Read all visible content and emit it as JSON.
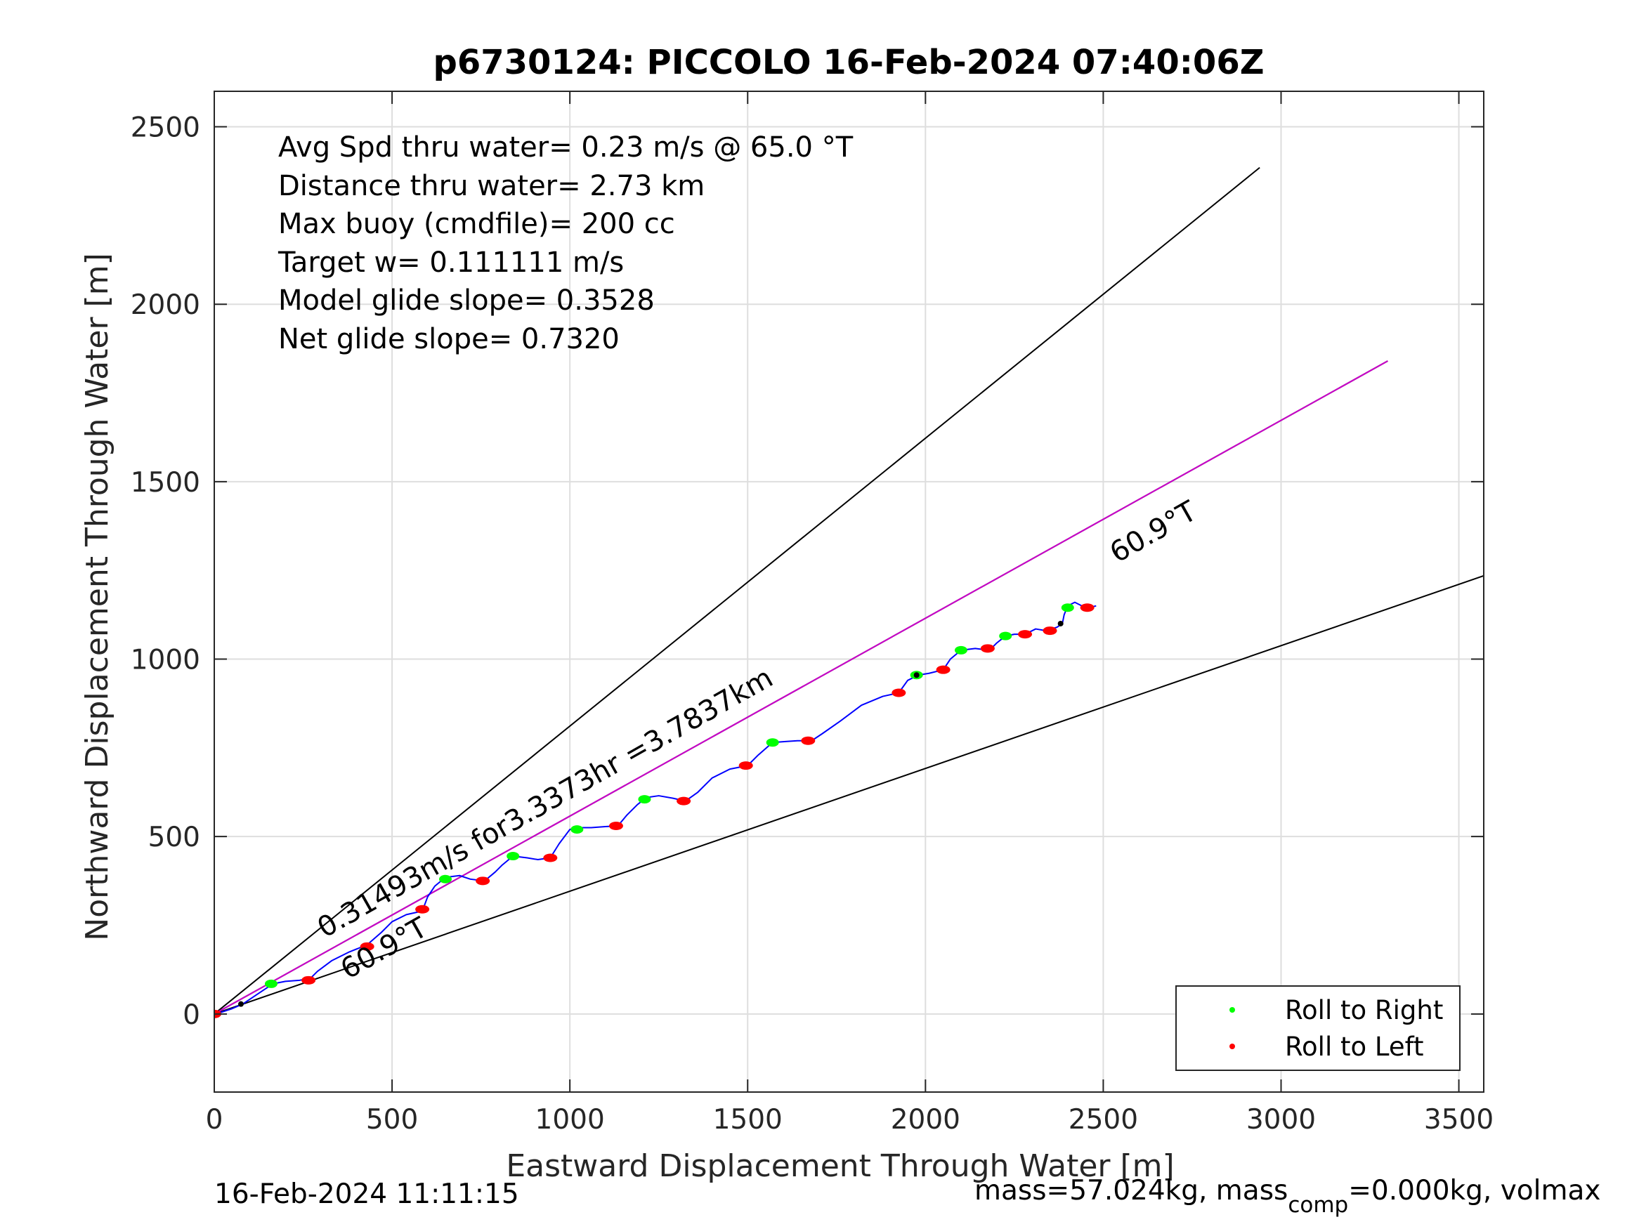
{
  "chart_data": {
    "type": "line",
    "title": "p6730124: PICCOLO 16-Feb-2024 07:40:06Z",
    "xlabel": "Eastward Displacement Through Water [m]",
    "ylabel": "Northward Displacement Through Water [m]",
    "xlim": [
      0,
      3570
    ],
    "ylim": [
      -220,
      2600
    ],
    "xticks": [
      "0",
      "500",
      "1000",
      "1500",
      "2000",
      "2500",
      "3000",
      "3500"
    ],
    "yticks": [
      "0",
      "500",
      "1000",
      "1500",
      "2000",
      "2500"
    ],
    "xtick_values": [
      0,
      500,
      1000,
      1500,
      2000,
      2500,
      3000,
      3500
    ],
    "ytick_values": [
      0,
      500,
      1000,
      1500,
      2000,
      2500
    ],
    "grid": true,
    "info_lines": [
      "Avg Spd thru water=  0.23 m/s @  65.0 °T",
      "Distance thru water=  2.73 km",
      "Max buoy (cmdfile)= 200 cc",
      "Target w= 0.111111 m/s",
      "Model glide slope= 0.3528",
      "Net glide slope= 0.7320"
    ],
    "reference_lines": [
      {
        "color": "#000000",
        "points": [
          [
            0,
            0
          ],
          [
            2940,
            2385
          ]
        ]
      },
      {
        "color": "#000000",
        "points": [
          [
            0,
            0
          ],
          [
            3300,
            1840
          ]
        ]
      },
      {
        "color": "#000000",
        "points": [
          [
            0,
            0
          ],
          [
            3570,
            1235
          ]
        ]
      },
      {
        "color": "#cc00cc",
        "points": [
          [
            0,
            0
          ],
          [
            3300,
            1840
          ]
        ]
      }
    ],
    "annotations": {
      "rotated_speed": "0.31493m/s for3.3373hr =3.7837km",
      "heading_near": "60.9°T",
      "heading_far": "60.9°T"
    },
    "track": {
      "name": "track",
      "color": "#0000ff",
      "x": [
        0,
        20,
        50,
        80,
        120,
        165,
        200,
        240,
        270,
        290,
        330,
        380,
        430,
        470,
        500,
        540,
        585,
        600,
        620,
        650,
        690,
        720,
        760,
        790,
        810,
        840,
        880,
        910,
        945,
        970,
        1000,
        1025,
        1060,
        1100,
        1135,
        1160,
        1190,
        1215,
        1250,
        1290,
        1325,
        1360,
        1400,
        1450,
        1500,
        1530,
        1570,
        1610,
        1640,
        1680,
        1710,
        1760,
        1820,
        1880,
        1925,
        1950,
        1980,
        2010,
        2050,
        2070,
        2100,
        2140,
        2180,
        2200,
        2225,
        2250,
        2280,
        2310,
        2340,
        2370,
        2385,
        2390,
        2400,
        2420,
        2440,
        2460,
        2480
      ],
      "y": [
        0,
        5,
        15,
        28,
        55,
        85,
        92,
        95,
        100,
        120,
        150,
        175,
        195,
        230,
        260,
        280,
        290,
        330,
        360,
        385,
        390,
        380,
        375,
        400,
        420,
        445,
        440,
        435,
        440,
        480,
        520,
        525,
        525,
        528,
        530,
        560,
        590,
        610,
        615,
        608,
        600,
        625,
        665,
        690,
        700,
        730,
        765,
        768,
        770,
        770,
        790,
        825,
        870,
        895,
        905,
        940,
        955,
        960,
        970,
        1000,
        1025,
        1030,
        1025,
        1045,
        1065,
        1070,
        1070,
        1085,
        1080,
        1090,
        1100,
        1125,
        1150,
        1160,
        1150,
        1145,
        1150
      ]
    },
    "roll_markers": {
      "right": {
        "label": "Roll to Right",
        "color": "#00ff00",
        "x": [
          160,
          650,
          840,
          1020,
          1210,
          1570,
          1975,
          2100,
          2225,
          2400
        ],
        "y": [
          85,
          380,
          445,
          520,
          605,
          765,
          955,
          1025,
          1065,
          1145
        ]
      },
      "left": {
        "label": "Roll to Left",
        "color": "#ff0000",
        "x": [
          0,
          265,
          430,
          585,
          755,
          945,
          1130,
          1320,
          1495,
          1670,
          1925,
          2050,
          2175,
          2280,
          2350,
          2455
        ],
        "y": [
          0,
          95,
          190,
          295,
          375,
          440,
          530,
          600,
          700,
          770,
          905,
          970,
          1030,
          1070,
          1080,
          1145
        ]
      },
      "neutral": {
        "color": "#000000",
        "x": [
          75,
          1975,
          2380
        ],
        "y": [
          28,
          955,
          1100
        ]
      }
    },
    "legend": {
      "placement": "bottom-right",
      "entries": [
        "Roll to Right",
        "Roll to Left"
      ]
    }
  },
  "footer": {
    "date": "16-Feb-2024 11:11:15",
    "mass_prefix": "mass=57.024kg, mass",
    "mass_sub": "comp",
    "mass_suffix": "=0.000kg, volmax"
  }
}
